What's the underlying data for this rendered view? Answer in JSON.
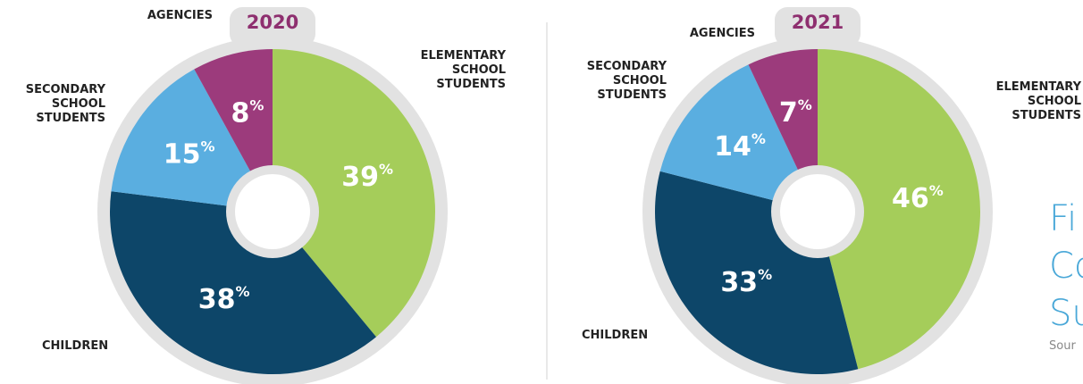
{
  "chart_data": [
    {
      "type": "pie",
      "title": "2020",
      "categories": [
        "ELEMENTARY SCHOOL STUDENTS",
        "CHILDREN",
        "SECONDARY SCHOOL STUDENTS",
        "AGENCIES"
      ],
      "values": [
        39,
        38,
        15,
        8
      ],
      "value_labels": [
        "39%",
        "38%",
        "15%",
        "8%"
      ],
      "colors": [
        "#a5cd5a",
        "#0d4669",
        "#5aaee0",
        "#9c3b7c"
      ]
    },
    {
      "type": "pie",
      "title": "2021",
      "categories": [
        "ELEMENTARY SCHOOL STUDENTS",
        "CHILDREN",
        "SECONDARY SCHOOL STUDENTS",
        "AGENCIES"
      ],
      "values": [
        46,
        33,
        14,
        7
      ],
      "value_labels": [
        "46%",
        "33%",
        "14%",
        "7%"
      ],
      "colors": [
        "#a5cd5a",
        "#0d4669",
        "#5aaee0",
        "#9c3b7c"
      ]
    }
  ],
  "side_title": [
    "Fi",
    "Co",
    "Su"
  ],
  "source": "Sour"
}
